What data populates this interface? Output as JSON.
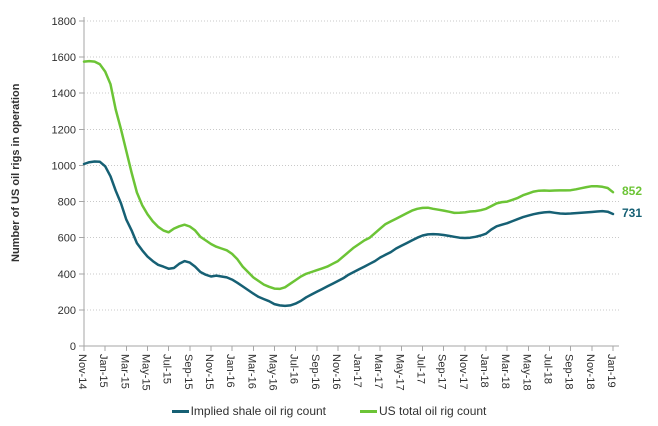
{
  "colors": {
    "shale_line": "#166074",
    "total_line": "#6cc436",
    "axis": "#a6a6a6",
    "gridline": "#c9c9c9",
    "text": "#303030"
  },
  "chart_data": {
    "type": "line",
    "ylabel": "Number of US oil rigs in operation",
    "ylim": [
      0,
      1800
    ],
    "ytick_step": 200,
    "ytick_labels": [
      "0",
      "200",
      "400",
      "600",
      "800",
      "1000",
      "1200",
      "1400",
      "1600",
      "1800"
    ],
    "x_tick_labels": [
      "Nov-14",
      "Jan-15",
      "Mar-15",
      "May-15",
      "Jul-15",
      "Sep-15",
      "Nov-15",
      "Jan-16",
      "Mar-16",
      "May-16",
      "Jul-16",
      "Sep-16",
      "Nov-16",
      "Jan-17",
      "Mar-17",
      "May-17",
      "Jul-17",
      "Sep-17",
      "Nov-17",
      "Jan-18",
      "Mar-18",
      "May-18",
      "Jul-18",
      "Sep-18",
      "Nov-18",
      "Jan-19"
    ],
    "x_points_per_month": 2,
    "grid": "horizontal-dotted",
    "legend_position": "bottom",
    "series": [
      {
        "name": "Implied shale oil rig count",
        "end_label": "731",
        "color": "#166074",
        "values": [
          1008,
          1018,
          1022,
          1020,
          995,
          940,
          860,
          790,
          700,
          640,
          570,
          530,
          495,
          470,
          450,
          440,
          428,
          432,
          455,
          470,
          462,
          440,
          410,
          395,
          385,
          390,
          385,
          380,
          368,
          350,
          330,
          310,
          290,
          272,
          260,
          248,
          232,
          225,
          222,
          225,
          235,
          250,
          270,
          285,
          300,
          315,
          330,
          345,
          360,
          375,
          395,
          410,
          425,
          440,
          455,
          470,
          490,
          505,
          520,
          540,
          555,
          570,
          585,
          600,
          612,
          618,
          620,
          618,
          615,
          610,
          605,
          600,
          598,
          600,
          605,
          612,
          622,
          645,
          663,
          672,
          680,
          692,
          703,
          714,
          722,
          730,
          736,
          740,
          742,
          738,
          734,
          733,
          734,
          736,
          738,
          740,
          742,
          745,
          747,
          744,
          731
        ]
      },
      {
        "name": "US total oil rig count",
        "end_label": "852",
        "color": "#6cc436",
        "values": [
          1575,
          1578,
          1575,
          1560,
          1520,
          1450,
          1310,
          1200,
          1080,
          960,
          850,
          780,
          730,
          690,
          660,
          640,
          630,
          650,
          663,
          672,
          662,
          640,
          605,
          585,
          565,
          550,
          540,
          530,
          510,
          480,
          440,
          410,
          380,
          360,
          340,
          328,
          318,
          316,
          325,
          345,
          365,
          385,
          400,
          410,
          420,
          430,
          440,
          455,
          470,
          495,
          520,
          545,
          565,
          585,
          600,
          625,
          650,
          675,
          690,
          705,
          720,
          735,
          750,
          760,
          765,
          766,
          760,
          755,
          750,
          744,
          737,
          738,
          740,
          745,
          747,
          752,
          760,
          775,
          790,
          797,
          800,
          810,
          820,
          835,
          845,
          855,
          860,
          861,
          860,
          861,
          862,
          862,
          863,
          868,
          874,
          880,
          885,
          885,
          882,
          875,
          852
        ]
      }
    ]
  }
}
